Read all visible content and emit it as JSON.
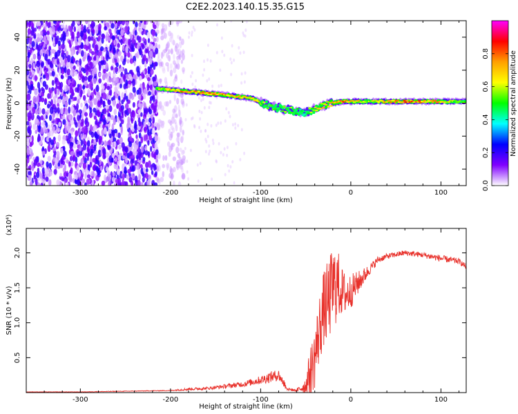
{
  "title": "C2E2.2023.140.15.35.G15",
  "colors": {
    "snr_line": "#e8302a",
    "colorbar_stops": [
      "#ff00ff",
      "#ff0000",
      "#ffa000",
      "#ffff00",
      "#00ff00",
      "#00ffff",
      "#0000ff",
      "#8000ff",
      "#ffffff"
    ]
  },
  "chart_data": [
    {
      "type": "heatmap",
      "xlabel": "Height of straight line (km)",
      "ylabel": "Frequency (Hz)",
      "xlim": [
        -360,
        128
      ],
      "ylim": [
        -50,
        50
      ],
      "xticks": [
        -300,
        -200,
        -100,
        0,
        100
      ],
      "yticks": [
        -40,
        -20,
        0,
        20,
        40
      ],
      "colorbar": {
        "label": "Normalized spectral amplitude",
        "range": [
          0.0,
          1.0
        ],
        "ticks": [
          0.0,
          0.2,
          0.4,
          0.6,
          0.8
        ]
      },
      "signal_ridge": {
        "x": [
          -215,
          -180,
          -140,
          -110,
          -90,
          -70,
          -50,
          -30,
          -10,
          20,
          60,
          100,
          128
        ],
        "frequency": [
          9,
          7,
          5,
          3,
          -2,
          -4,
          -6,
          -1,
          1,
          1,
          1,
          1,
          1
        ],
        "amplitude": [
          0.6,
          0.8,
          0.75,
          0.7,
          0.5,
          0.55,
          0.5,
          0.7,
          0.8,
          0.6,
          0.85,
          0.7,
          0.5
        ]
      }
    },
    {
      "type": "line",
      "xlabel": "Height of straight line (km)",
      "ylabel": "SNR (10 * v/v)",
      "y_multiplier": "(x10⁴)",
      "xlim": [
        -360,
        128
      ],
      "ylim": [
        0,
        2.35
      ],
      "xticks": [
        -300,
        -200,
        -100,
        0,
        100
      ],
      "yticks": [
        0.5,
        1.0,
        1.5,
        2.0
      ],
      "series": [
        {
          "x": [
            -360,
            -300,
            -250,
            -200,
            -180,
            -160,
            -140,
            -120,
            -100,
            -90,
            -80,
            -70,
            -60,
            -50,
            -45,
            -40,
            -35,
            -30,
            -25,
            -20,
            -15,
            -10,
            -5,
            0,
            10,
            20,
            30,
            40,
            60,
            80,
            100,
            120,
            128
          ],
          "values": [
            0.01,
            0.01,
            0.02,
            0.03,
            0.05,
            0.06,
            0.09,
            0.12,
            0.18,
            0.22,
            0.25,
            0.05,
            0.03,
            0.1,
            0.3,
            0.5,
            0.9,
            1.2,
            1.3,
            1.5,
            1.55,
            1.45,
            1.4,
            1.45,
            1.6,
            1.75,
            1.9,
            1.95,
            2.0,
            1.97,
            1.92,
            1.88,
            1.8
          ],
          "noise": [
            0.003,
            0.003,
            0.004,
            0.005,
            0.02,
            0.02,
            0.03,
            0.04,
            0.06,
            0.08,
            0.08,
            0.02,
            0.02,
            0.12,
            0.35,
            0.45,
            0.5,
            0.55,
            0.6,
            0.6,
            0.55,
            0.35,
            0.3,
            0.25,
            0.15,
            0.08,
            0.05,
            0.04,
            0.04,
            0.04,
            0.05,
            0.04,
            0.04
          ]
        }
      ]
    }
  ]
}
